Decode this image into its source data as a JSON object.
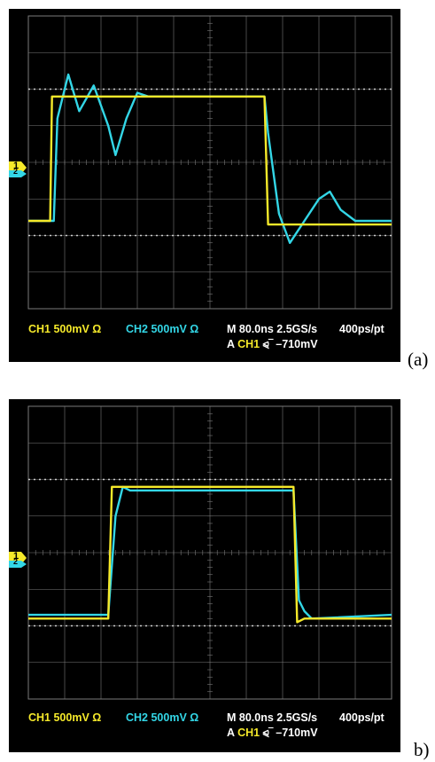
{
  "colors": {
    "background": "#000000",
    "grid": "#7a7a7a",
    "ch1": "#f5e92a",
    "ch2": "#33d6e6",
    "text": "#ffffff"
  },
  "panels": [
    {
      "label": "(a)",
      "ch1_readout": "CH1  500mV Ω",
      "ch2_readout": "CH2  500mV Ω",
      "timebase_readout": "M 80.0ns 2.5GS/s",
      "resolution_readout": "400ps/pt",
      "trigger_prefix": "A",
      "trigger_channel": "CH1",
      "trigger_symbol": "⪨‾",
      "trigger_level": "–710mV",
      "ch1_marker": "1",
      "ch2_marker": "2",
      "ch1_trace": [
        [
          0,
          -1.6
        ],
        [
          0.6,
          -1.6
        ],
        [
          0.65,
          1.8
        ],
        [
          1.0,
          1.8
        ],
        [
          2.0,
          1.8
        ],
        [
          4.0,
          1.8
        ],
        [
          6.0,
          1.8
        ],
        [
          6.5,
          1.8
        ],
        [
          6.6,
          -1.7
        ],
        [
          7.0,
          -1.7
        ],
        [
          8.0,
          -1.7
        ],
        [
          10.0,
          -1.7
        ]
      ],
      "ch2_trace": [
        [
          0,
          -1.6
        ],
        [
          0.7,
          -1.6
        ],
        [
          0.8,
          1.2
        ],
        [
          1.1,
          2.4
        ],
        [
          1.4,
          1.4
        ],
        [
          1.8,
          2.1
        ],
        [
          2.2,
          1.0
        ],
        [
          2.4,
          0.2
        ],
        [
          2.7,
          1.2
        ],
        [
          3.0,
          1.9
        ],
        [
          3.3,
          1.8
        ],
        [
          4.0,
          1.8
        ],
        [
          6.0,
          1.8
        ],
        [
          6.5,
          1.8
        ],
        [
          6.6,
          0.8
        ],
        [
          6.9,
          -1.4
        ],
        [
          7.2,
          -2.2
        ],
        [
          7.6,
          -1.6
        ],
        [
          8.0,
          -1.0
        ],
        [
          8.3,
          -0.8
        ],
        [
          8.6,
          -1.3
        ],
        [
          9.0,
          -1.6
        ],
        [
          10.0,
          -1.6
        ]
      ]
    },
    {
      "label": "b)",
      "ch1_readout": "CH1  500mV Ω",
      "ch2_readout": "CH2  500mV Ω",
      "timebase_readout": "M 80.0ns 2.5GS/s",
      "resolution_readout": "400ps/pt",
      "trigger_prefix": "A",
      "trigger_channel": "CH1",
      "trigger_symbol": "⪨‾",
      "trigger_level": "–710mV",
      "ch1_marker": "1",
      "ch2_marker": "2",
      "ch1_trace": [
        [
          0,
          -1.8
        ],
        [
          2.2,
          -1.8
        ],
        [
          2.3,
          1.8
        ],
        [
          2.5,
          1.8
        ],
        [
          5.0,
          1.8
        ],
        [
          7.3,
          1.8
        ],
        [
          7.4,
          -1.9
        ],
        [
          7.6,
          -1.8
        ],
        [
          10.0,
          -1.8
        ]
      ],
      "ch2_trace": [
        [
          0,
          -1.7
        ],
        [
          2.2,
          -1.7
        ],
        [
          2.4,
          1.0
        ],
        [
          2.6,
          1.8
        ],
        [
          2.8,
          1.7
        ],
        [
          5.0,
          1.7
        ],
        [
          7.3,
          1.7
        ],
        [
          7.45,
          -1.3
        ],
        [
          7.6,
          -1.6
        ],
        [
          7.8,
          -1.8
        ],
        [
          10.0,
          -1.7
        ]
      ]
    }
  ]
}
